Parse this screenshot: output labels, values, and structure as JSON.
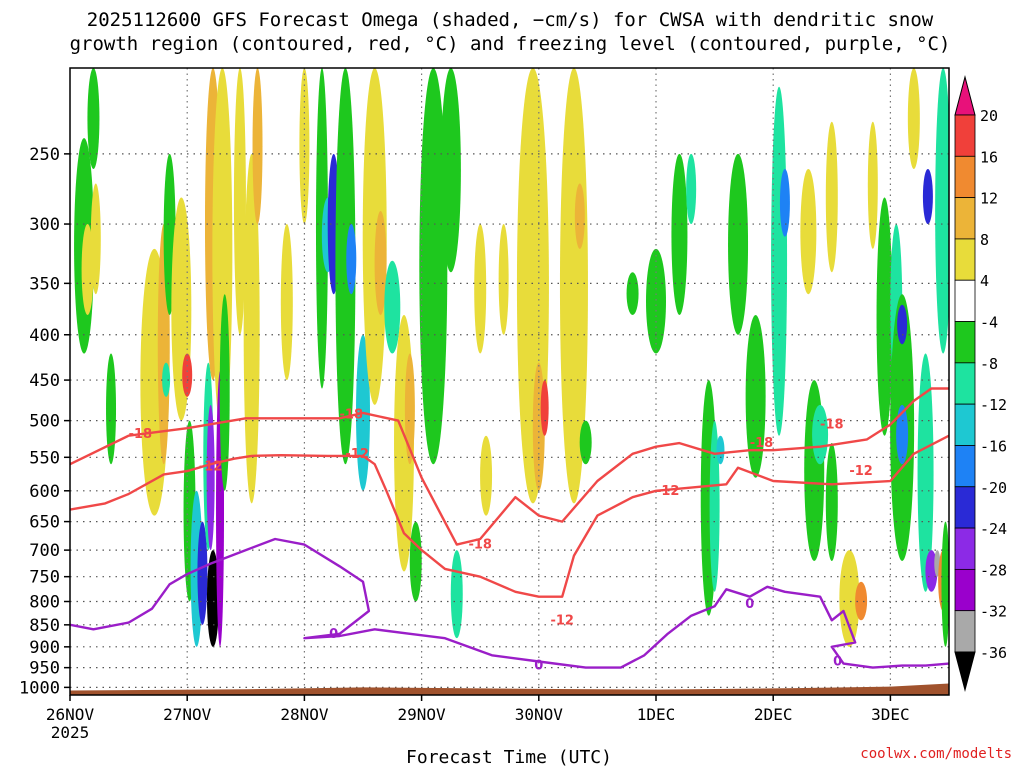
{
  "chart_data": {
    "type": "heatmap",
    "title_lines": [
      "2025112600 GFS Forecast Omega (shaded, −cm/s) for CWSA with dendritic snow",
      "growth region (contoured, red, °C) and freezing level (contoured, purple, °C)"
    ],
    "xlabel": "Forecast Time (UTC)",
    "ylabel": "",
    "x_ticks": [
      "26NOV",
      "27NOV",
      "28NOV",
      "29NOV",
      "30NOV",
      "1DEC",
      "2DEC",
      "3DEC"
    ],
    "x_year": "2025",
    "y_ticks": [
      250,
      300,
      350,
      400,
      450,
      500,
      550,
      600,
      650,
      700,
      750,
      800,
      850,
      900,
      950,
      1000
    ],
    "y_scale": "log-pressure",
    "y_range": [
      1020,
      200
    ],
    "x_range_days": [
      0,
      7.5
    ],
    "grid": true,
    "colorbar": {
      "levels": [
        20,
        16,
        12,
        8,
        4,
        -4,
        -8,
        -12,
        -16,
        -20,
        -24,
        -28,
        -32,
        -36
      ],
      "colors": {
        "gt20": "#e8117a",
        "16_20": "#f0403a",
        "12_16": "#f08a30",
        "8_12": "#ecb438",
        "4_8": "#e8dc3a",
        "neutral": "#ffffff",
        "m8_m4": "#1ec81e",
        "m12_m8": "#1ee3a0",
        "m16_m12": "#1ec8d2",
        "m20_m16": "#1e82f5",
        "m24_m20": "#2a2ad6",
        "m28_m24": "#8c2ae6",
        "m32_m28": "#9a00cc",
        "m36_m32": "#a9a9a9",
        "lt_m36": "#000000"
      }
    },
    "contours": {
      "dgz_minus12": {
        "label": "-12",
        "color": "#f04848",
        "points": [
          [
            0,
            630
          ],
          [
            0.3,
            620
          ],
          [
            0.5,
            605
          ],
          [
            0.8,
            575
          ],
          [
            1.0,
            570
          ],
          [
            1.2,
            560
          ],
          [
            1.4,
            552
          ],
          [
            1.55,
            548
          ],
          [
            1.8,
            547
          ],
          [
            2.2,
            548
          ],
          [
            2.4,
            548
          ],
          [
            2.5,
            548
          ],
          [
            2.6,
            560
          ],
          [
            2.7,
            600
          ],
          [
            2.85,
            670
          ],
          [
            3.0,
            700
          ],
          [
            3.2,
            735
          ],
          [
            3.5,
            750
          ],
          [
            3.8,
            780
          ],
          [
            4.0,
            790
          ],
          [
            4.1,
            790
          ],
          [
            4.2,
            790
          ],
          [
            4.3,
            710
          ],
          [
            4.5,
            640
          ],
          [
            4.8,
            610
          ],
          [
            5.0,
            600
          ],
          [
            5.3,
            595
          ],
          [
            5.6,
            590
          ],
          [
            5.7,
            565
          ],
          [
            6.0,
            585
          ],
          [
            6.5,
            590
          ],
          [
            7.0,
            585
          ],
          [
            7.2,
            545
          ],
          [
            7.5,
            520
          ]
        ]
      },
      "dgz_minus18": {
        "label": "-18",
        "color": "#f04848",
        "points": [
          [
            0,
            560
          ],
          [
            0.5,
            520
          ],
          [
            1.0,
            510
          ],
          [
            1.5,
            497
          ],
          [
            2.0,
            497
          ],
          [
            2.3,
            497
          ],
          [
            2.5,
            490
          ],
          [
            2.8,
            500
          ],
          [
            3.0,
            580
          ],
          [
            3.3,
            690
          ],
          [
            3.5,
            680
          ],
          [
            3.8,
            610
          ],
          [
            4.0,
            640
          ],
          [
            4.2,
            650
          ],
          [
            4.5,
            585
          ],
          [
            4.8,
            545
          ],
          [
            5.0,
            535
          ],
          [
            5.2,
            530
          ],
          [
            5.5,
            545
          ],
          [
            5.8,
            540
          ],
          [
            6.0,
            540
          ],
          [
            6.4,
            535
          ],
          [
            6.8,
            525
          ],
          [
            7.0,
            505
          ],
          [
            7.2,
            475
          ],
          [
            7.35,
            460
          ],
          [
            7.5,
            460
          ]
        ]
      },
      "freezing_0": {
        "label": "0",
        "color": "#9a1ec8",
        "points": [
          [
            0,
            850
          ],
          [
            0.2,
            860
          ],
          [
            0.5,
            845
          ],
          [
            0.7,
            815
          ],
          [
            0.85,
            765
          ],
          [
            1.0,
            745
          ],
          [
            1.2,
            725
          ],
          [
            1.5,
            700
          ],
          [
            1.75,
            680
          ],
          [
            2.0,
            690
          ],
          [
            2.3,
            730
          ],
          [
            2.5,
            760
          ],
          [
            2.55,
            820
          ],
          [
            2.3,
            870
          ],
          [
            2.0,
            880
          ],
          [
            2.3,
            875
          ],
          [
            2.6,
            860
          ],
          [
            2.9,
            870
          ],
          [
            3.2,
            880
          ],
          [
            3.6,
            920
          ],
          [
            4.0,
            935
          ],
          [
            4.4,
            950
          ],
          [
            4.7,
            950
          ],
          [
            4.9,
            920
          ],
          [
            5.1,
            870
          ],
          [
            5.3,
            830
          ],
          [
            5.5,
            810
          ],
          [
            5.6,
            775
          ],
          [
            5.8,
            790
          ],
          [
            5.95,
            770
          ],
          [
            6.1,
            780
          ],
          [
            6.4,
            790
          ],
          [
            6.5,
            840
          ],
          [
            6.6,
            820
          ],
          [
            6.7,
            890
          ],
          [
            6.5,
            900
          ],
          [
            6.6,
            940
          ],
          [
            6.85,
            950
          ],
          [
            7.1,
            945
          ],
          [
            7.3,
            945
          ],
          [
            7.5,
            940
          ]
        ]
      }
    },
    "watermark": "coolwx.com/modelts"
  }
}
